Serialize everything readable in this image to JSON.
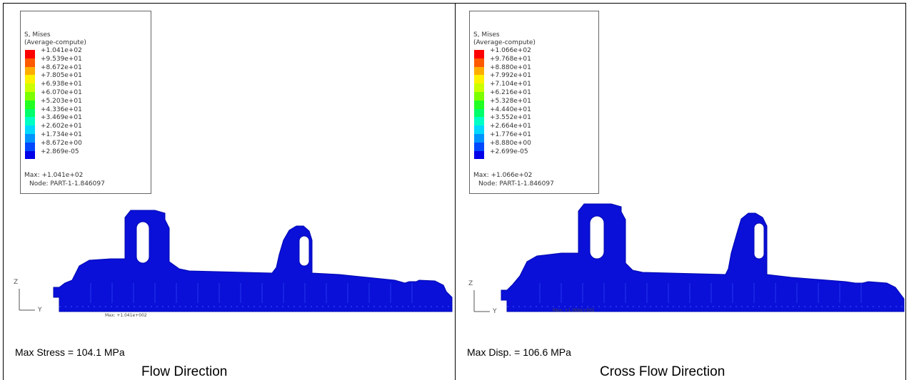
{
  "panels": [
    {
      "legend": {
        "title": "S, Mises",
        "subtitle": "(Average-compute)",
        "values": [
          "+1.041e+02",
          "+9.539e+01",
          "+8.672e+01",
          "+7.805e+01",
          "+6.938e+01",
          "+6.070e+01",
          "+5.203e+01",
          "+4.336e+01",
          "+3.469e+01",
          "+2.602e+01",
          "+1.734e+01",
          "+8.672e+00",
          "+2.869e-05"
        ],
        "max": "Max: +1.041e+02",
        "node": "Node: PART-1-1.846097"
      },
      "max_marker": "Max: +1.041e+002",
      "axis_z": "Z",
      "axis_y": "Y",
      "caption": "Max Stress = 104.1 MPa",
      "direction": "Flow Direction"
    },
    {
      "legend": {
        "title": "S, Mises",
        "subtitle": "(Average-compute)",
        "values": [
          "+1.066e+02",
          "+9.768e+01",
          "+8.880e+01",
          "+7.992e+01",
          "+7.104e+01",
          "+6.216e+01",
          "+5.328e+01",
          "+4.440e+01",
          "+3.552e+01",
          "+2.664e+01",
          "+1.776e+01",
          "+8.880e+00",
          "+2.699e-05"
        ],
        "max": "Max: +1.066e+02",
        "node": "Node: PART-1-1.846097"
      },
      "max_marker": "Max: +1.066e+002",
      "axis_z": "Z",
      "axis_y": "Y",
      "caption": "Max Disp. = 106.6 MPa",
      "direction": "Cross Flow Direction"
    }
  ],
  "colors": {
    "legend_scale": [
      "#ff0000",
      "#ff5a00",
      "#ffae00",
      "#fff200",
      "#ccff00",
      "#7cff00",
      "#22ff22",
      "#00ff6a",
      "#00ffc4",
      "#00d8ff",
      "#0094ff",
      "#0048ff",
      "#0000e8"
    ],
    "model_fill": "#0a10d8",
    "model_dark": "#0008b0",
    "model_line": "#3a55ff"
  }
}
